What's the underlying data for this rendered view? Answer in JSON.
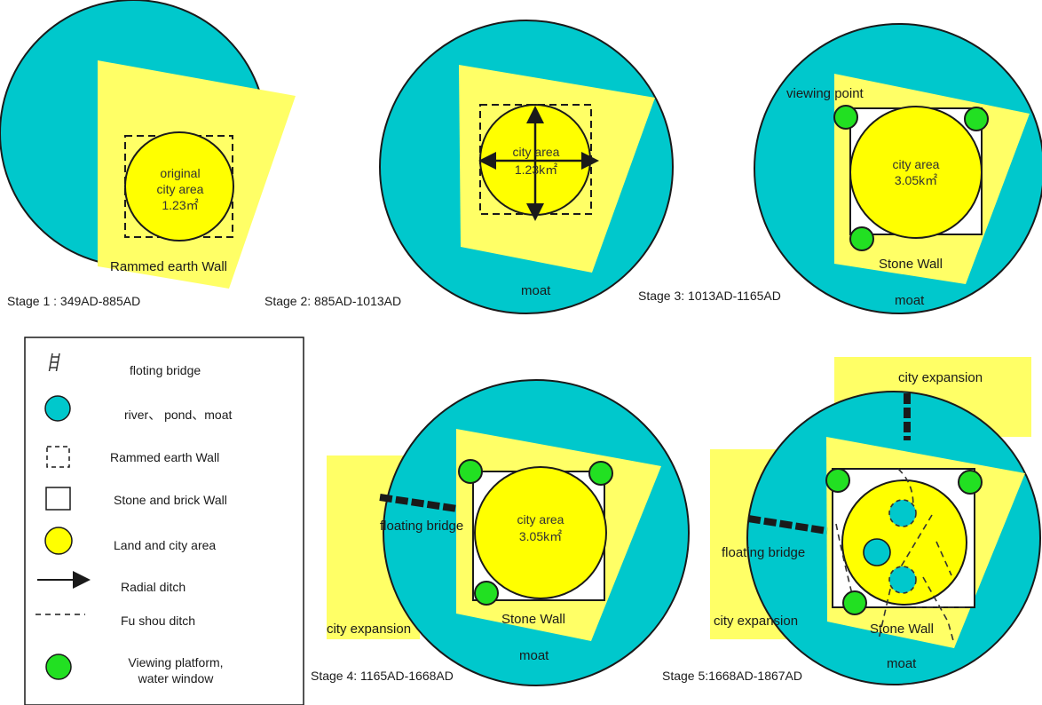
{
  "colors": {
    "water": "#00C8CC",
    "land": "#FFFF66",
    "city": "#FFFF00",
    "viewing": "#22E022",
    "outline": "#1a1a1a"
  },
  "stage1": {
    "caption": "Stage 1 : 349AD-885AD",
    "city_label_1": "original",
    "city_label_2": "city area",
    "city_label_3": "1.23㎡",
    "wall_label": "Rammed earth Wall"
  },
  "stage2": {
    "caption": "Stage 2: 885AD-1013AD",
    "city_label_1": "city area",
    "city_label_2": "1.23k㎡",
    "moat_label": "moat"
  },
  "stage3": {
    "caption": "Stage 3: 1013AD-1165AD",
    "viewing_label": "viewing point",
    "city_label_1": "city area",
    "city_label_2": "3.05k㎡",
    "wall_label": "Stone Wall",
    "moat_label": "moat"
  },
  "stage4": {
    "caption": "Stage 4: 1165AD-1668AD",
    "bridge_label": "floating bridge",
    "expansion_label": "city expansion",
    "city_label_1": "city area",
    "city_label_2": "3.05k㎡",
    "wall_label": "Stone Wall",
    "moat_label": "moat"
  },
  "stage5": {
    "caption": "Stage 5:1668AD-1867AD",
    "expansion_top_label": "city expansion",
    "bridge_label": "floating bridge",
    "expansion_left_label": "city expansion",
    "wall_label": "Stone Wall",
    "moat_label": "moat"
  },
  "legend": {
    "items": [
      {
        "icon": "floating-bridge-icon",
        "label": "floting bridge"
      },
      {
        "icon": "water-circle-icon",
        "label": "river、 pond、moat"
      },
      {
        "icon": "dashed-square-icon",
        "label": "Rammed earth Wall"
      },
      {
        "icon": "solid-square-icon",
        "label": "Stone and brick Wall"
      },
      {
        "icon": "yellow-circle-icon",
        "label": "Land and city area"
      },
      {
        "icon": "arrow-icon",
        "label": "Radial ditch"
      },
      {
        "icon": "dashed-line-icon",
        "label": "Fu shou ditch"
      },
      {
        "icon": "green-circle-icon",
        "label": "Viewing platform,"
      },
      {
        "icon": "green-circle-icon",
        "label": "water window"
      }
    ]
  }
}
